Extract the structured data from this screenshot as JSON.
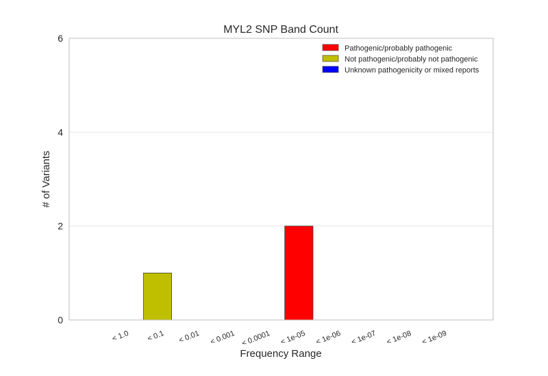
{
  "chart_data": {
    "type": "bar",
    "title": "MYL2 SNP Band Count",
    "xlabel": "Frequency Range",
    "ylabel": "# of Variants",
    "categories": [
      "< 1.0",
      "< 0.1",
      "< 0.01",
      "< 0.001",
      "< 0.0001",
      "< 1e-05",
      "< 1e-06",
      "< 1e-07",
      "< 1e-08",
      "< 1e-09"
    ],
    "series": [
      {
        "name": "Pathogenic/probably pathogenic",
        "color": "#ff0000",
        "values": [
          0,
          0,
          0,
          0,
          0,
          2,
          0,
          0,
          0,
          0
        ]
      },
      {
        "name": "Not pathogenic/probably not pathogenic",
        "color": "#bfbf00",
        "values": [
          0,
          1,
          0,
          0,
          0,
          0,
          0,
          0,
          0,
          0
        ]
      },
      {
        "name": "Unknown pathogenicity or mixed reports",
        "color": "#0000ff",
        "values": [
          0,
          0,
          0,
          0,
          0,
          0,
          0,
          0,
          0,
          0
        ]
      }
    ],
    "ylim": [
      0,
      6
    ],
    "yticks": [
      "0",
      "2",
      "4",
      "6"
    ],
    "grid": true,
    "legend_position": "top-right"
  }
}
